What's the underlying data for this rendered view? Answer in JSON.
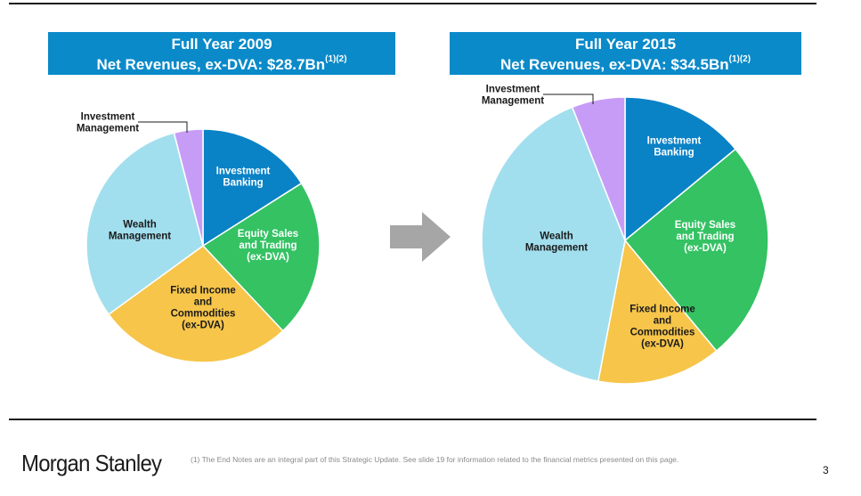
{
  "header": {
    "left_line1": "Full Year 2009",
    "left_line2": "Net Revenues, ex-DVA:  $28.7Bn",
    "left_sup": "(1)(2)",
    "right_line1": "Full Year 2015",
    "right_line2": "Net Revenues, ex-DVA: $34.5Bn",
    "right_sup": "(1)(2)"
  },
  "footer": {
    "logo": "Morgan Stanley",
    "footnote": "(1)   The End Notes are an integral part of this Strategic Update. See slide 19 for information related to the financial metrics presented on this page.",
    "page_number": "3"
  },
  "colors": {
    "header_bg": "#0a8ac9",
    "investment_banking": "#0a82c6",
    "equity_sales": "#34c263",
    "fixed_income": "#f6c54a",
    "wealth_management": "#a2dfee",
    "investment_management": "#c79cf6",
    "arrow": "#a6a6a6"
  },
  "chart_data": [
    {
      "type": "pie",
      "title": "Full Year 2009 Net Revenues, ex-DVA: $28.7Bn",
      "categories": [
        "Investment Banking",
        "Equity Sales and Trading (ex-DVA)",
        "Fixed Income and Commodities (ex-DVA)",
        "Wealth Management",
        "Investment Management"
      ],
      "labels": [
        [
          "Investment",
          "Banking"
        ],
        [
          "Equity Sales",
          "and Trading",
          "(ex-DVA)"
        ],
        [
          "Fixed Income",
          "and",
          "Commodities",
          "(ex-DVA)"
        ],
        [
          "Wealth",
          "Management"
        ],
        [
          "Investment",
          "Management"
        ]
      ],
      "values": [
        16,
        22,
        27,
        31,
        4
      ],
      "unit": "% of net revenues (approx.)"
    },
    {
      "type": "pie",
      "title": "Full Year 2015 Net Revenues, ex-DVA: $34.5Bn",
      "categories": [
        "Investment Banking",
        "Equity Sales and Trading (ex-DVA)",
        "Fixed Income and Commodities (ex-DVA)",
        "Wealth Management",
        "Investment Management"
      ],
      "labels": [
        [
          "Investment",
          "Banking"
        ],
        [
          "Equity Sales",
          "and Trading",
          "(ex-DVA)"
        ],
        [
          "Fixed Income",
          "and",
          "Commodities",
          "(ex-DVA)"
        ],
        [
          "Wealth",
          "Management"
        ],
        [
          "Investment",
          "Management"
        ]
      ],
      "values": [
        14,
        25,
        14,
        41,
        6
      ],
      "unit": "% of net revenues (approx.)"
    }
  ]
}
